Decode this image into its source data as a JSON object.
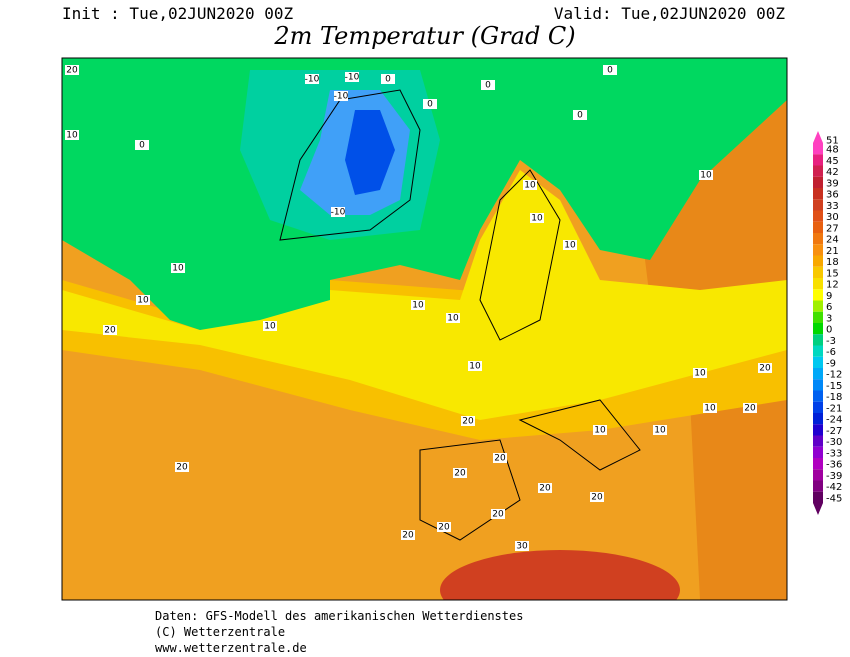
{
  "header": {
    "init": "Init : Tue,02JUN2020 00Z",
    "valid": "Valid: Tue,02JUN2020 00Z",
    "title": "2m Temperatur (Grad C)"
  },
  "colorbar": {
    "labels": [
      51,
      48,
      45,
      42,
      39,
      36,
      33,
      30,
      27,
      24,
      21,
      18,
      15,
      12,
      9,
      6,
      3,
      0,
      -3,
      -6,
      -9,
      -12,
      -15,
      -18,
      -21,
      -24,
      -27,
      -30,
      -33,
      -36,
      -39,
      -42,
      -45
    ],
    "colors": [
      "#ff40c0",
      "#e82080",
      "#d02050",
      "#c02030",
      "#c83020",
      "#d04020",
      "#e05018",
      "#e86010",
      "#f07810",
      "#f89010",
      "#f8a800",
      "#f8c800",
      "#f8e000",
      "#ffff00",
      "#a0f000",
      "#40e000",
      "#00d800",
      "#00d080",
      "#00d8c0",
      "#00c8f0",
      "#00a8f8",
      "#0088f8",
      "#0060f0",
      "#0040e8",
      "#0020d8",
      "#2000d0",
      "#6000c8",
      "#9000d0",
      "#b000c0",
      "#a000a0",
      "#800080",
      "#600060"
    ]
  },
  "map": {
    "labels": [
      "20",
      "20",
      "10",
      "0",
      "-10",
      "-10",
      "-10",
      "-10",
      "0",
      "0",
      "0",
      "0",
      "0",
      "10",
      "10",
      "10",
      "10",
      "20",
      "10",
      "10",
      "10",
      "10",
      "10",
      "10",
      "20",
      "20",
      "20",
      "20",
      "20",
      "20",
      "20",
      "30",
      "20",
      "10",
      "10",
      "20",
      "20",
      "10",
      "10"
    ]
  },
  "footer": [
    "Daten: GFS-Modell des amerikanischen Wetterdienstes",
    "(C) Wetterzentrale",
    "www.wetterzentrale.de"
  ]
}
